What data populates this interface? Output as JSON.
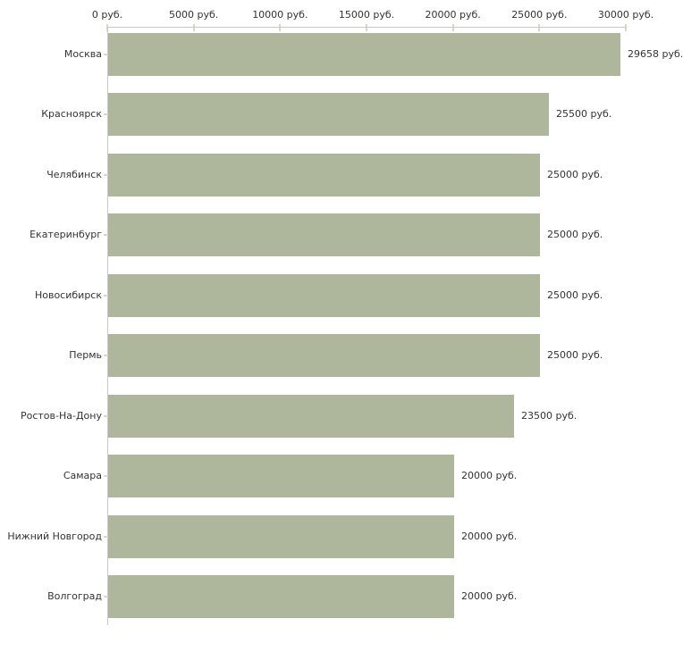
{
  "chart_data": {
    "type": "bar",
    "orientation": "horizontal",
    "title": "",
    "xlabel": "",
    "ylabel": "",
    "unit": "руб.",
    "categories": [
      "Москва",
      "Красноярск",
      "Челябинск",
      "Екатеринбург",
      "Новосибирск",
      "Пермь",
      "Ростов-На-Дону",
      "Самара",
      "Нижний Новгород",
      "Волгоград"
    ],
    "values": [
      29658,
      25500,
      25000,
      25000,
      25000,
      25000,
      23500,
      20000,
      20000,
      20000
    ],
    "value_labels": [
      "29658 руб.",
      "25500 руб.",
      "25000 руб.",
      "25000 руб.",
      "25000 руб.",
      "25000 руб.",
      "23500 руб.",
      "20000 руб.",
      "20000 руб.",
      "20000 руб."
    ],
    "x_axis": {
      "position": "top",
      "min": 0,
      "max": 30000,
      "ticks": [
        0,
        5000,
        10000,
        15000,
        20000,
        25000,
        30000
      ],
      "tick_labels": [
        "0 руб.",
        "5000 руб.",
        "10000 руб.",
        "15000 руб.",
        "20000 руб.",
        "25000 руб.",
        "30000 руб."
      ]
    },
    "grid": false,
    "legend": false,
    "colors": {
      "bar": "#aeb69b",
      "axis_line": "#c8c8c8",
      "tick_mark": "#d9d9c3",
      "text": "#333333",
      "background": "#ffffff"
    }
  }
}
